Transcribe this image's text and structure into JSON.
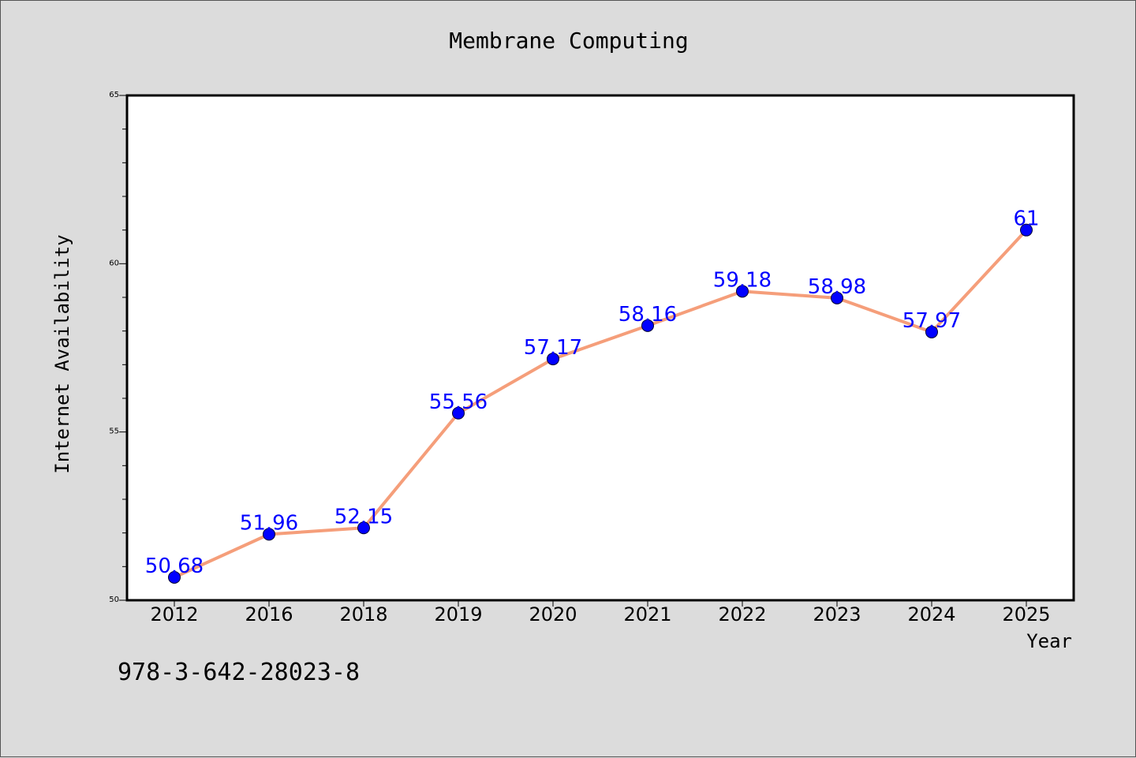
{
  "chart_data": {
    "type": "line",
    "title": "Membrane Computing",
    "xlabel": "Year",
    "ylabel": "Internet Availability",
    "categories": [
      "2012",
      "2016",
      "2018",
      "2019",
      "2020",
      "2021",
      "2022",
      "2023",
      "2024",
      "2025"
    ],
    "series": [
      {
        "values": [
          50.68,
          51.96,
          52.15,
          55.56,
          57.17,
          58.16,
          59.18,
          58.98,
          57.97,
          61
        ],
        "labels": [
          "50.68",
          "51.96",
          "52.15",
          "55.56",
          "57.17",
          "58.16",
          "59.18",
          "58.98",
          "57.97",
          "61"
        ],
        "line_color": "#f59e7a",
        "marker_color": "#0000ff"
      }
    ],
    "ylim": [
      50,
      65
    ],
    "y_ticks": [
      "50",
      "55",
      "60",
      "65"
    ],
    "grid": false,
    "legend": "none"
  },
  "footer": {
    "isbn": "978-3-642-28023-8"
  },
  "colors": {
    "background": "#dcdcdc",
    "plot_background": "#ffffff",
    "label_color": "#0000ff"
  }
}
